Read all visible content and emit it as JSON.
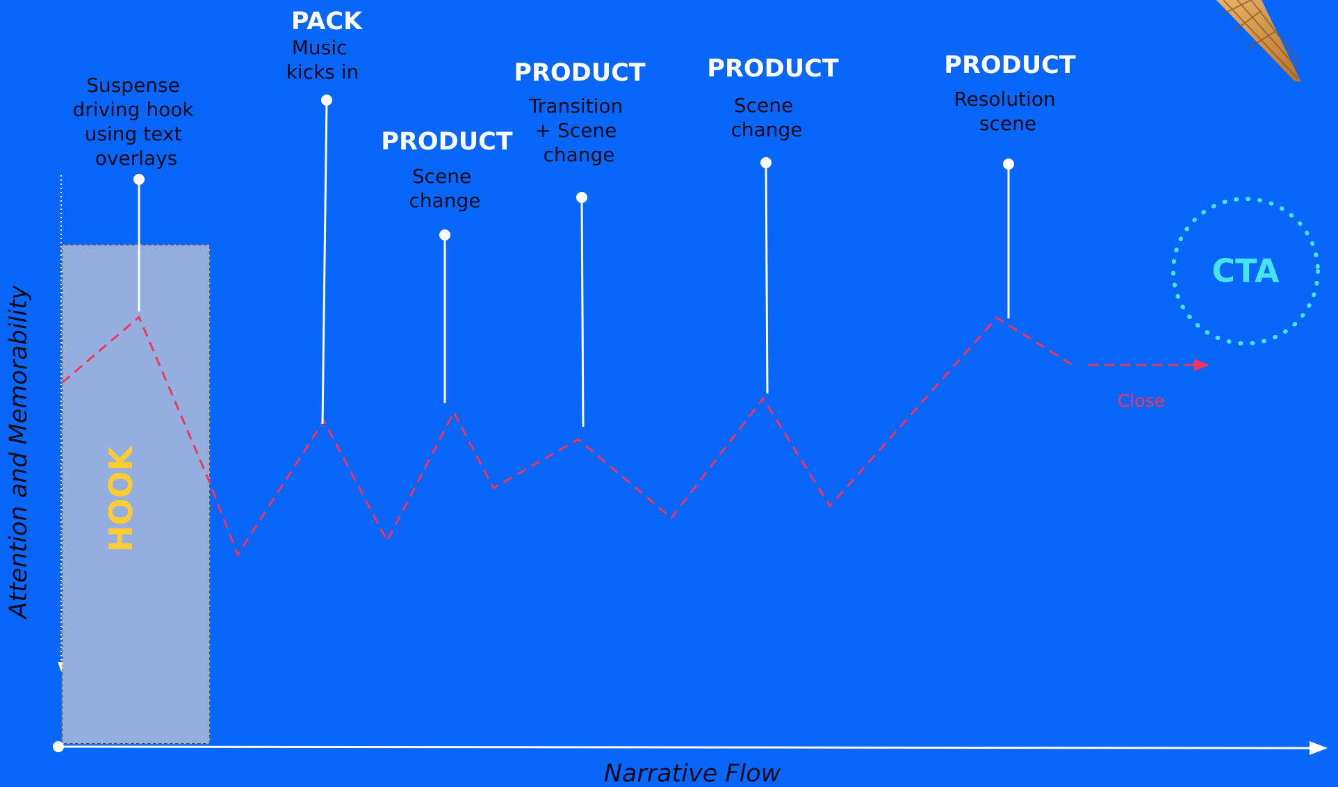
{
  "colors": {
    "background": "#0866fb",
    "axis": "#ffffff",
    "curve": "#f0365c",
    "hook_box": "#94aee0",
    "hook_border": "#e8a13a",
    "hook_text": "#ffcc33",
    "cta": "#46e3f2",
    "close_text": "#f0365c",
    "label_text": "#0b0b1a",
    "heading_text": "#ffffff"
  },
  "axes": {
    "x_label": "Narrative Flow",
    "y_label": "Attention and Memorability"
  },
  "hook": {
    "label": "HOOK"
  },
  "cta": {
    "label": "CTA"
  },
  "close": {
    "label": "Close"
  },
  "beats": [
    {
      "heading": "",
      "description": [
        "Suspense",
        "driving hook",
        "using text",
        "overlays"
      ]
    },
    {
      "heading": "PACK",
      "description": [
        "Music",
        "kicks in"
      ]
    },
    {
      "heading": "PRODUCT",
      "description": [
        "Scene",
        "change"
      ]
    },
    {
      "heading": "PRODUCT",
      "description": [
        "Transition",
        "+ Scene",
        "change"
      ]
    },
    {
      "heading": "PRODUCT",
      "description": [
        "Scene",
        "change"
      ]
    },
    {
      "heading": "PRODUCT",
      "description": [
        "Resolution",
        "scene"
      ]
    }
  ],
  "decoration": {
    "corner_image": "ice-cream-cone"
  }
}
